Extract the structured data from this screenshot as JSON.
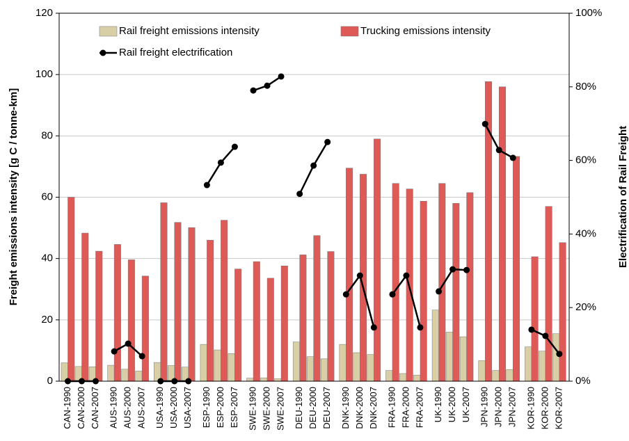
{
  "chart_data": {
    "type": "bar",
    "y_label": "Freight emissions intensity  [g C / tonne-km]",
    "y2_label": "Electrification of Rail Freight",
    "categories": [
      "CAN-1990",
      "CAN-2000",
      "CAN-2007",
      "AUS-1990",
      "AUS-2000",
      "AUS-2007",
      "USA-1990",
      "USA-2000",
      "USA-2007",
      "ESP-1990",
      "ESP-2000",
      "ESP-2007",
      "SWE-1990",
      "SWE-2000",
      "SWE-2007",
      "DEU-1990",
      "DEU-2000",
      "DEU-2007",
      "DNK-1990",
      "DNK-2000",
      "DNK-2007",
      "FRA-1990",
      "FRA-2000",
      "FRA-2007",
      "UK-1990",
      "UK-2000",
      "UK-2007",
      "JPN-1990",
      "JPN-2000",
      "JPN-2007",
      "KOR-1990",
      "KOR-2000",
      "KOR-2007"
    ],
    "series": [
      {
        "name": "Rail freight emissions intensity",
        "type": "bar",
        "color": "#d8cfa6",
        "values": [
          6,
          4.8,
          4.7,
          5.2,
          3.9,
          3.3,
          6.1,
          5.1,
          4.6,
          12,
          10.2,
          9,
          1,
          1.1,
          0.8,
          12.8,
          8,
          7.3,
          12,
          9.3,
          8.7,
          3.5,
          2.5,
          2,
          23.2,
          16,
          14.5,
          6.7,
          3.5,
          3.8,
          11.2,
          9.8,
          15.5
        ]
      },
      {
        "name": "Trucking emissions intensity",
        "type": "bar",
        "color": "#dd5a57",
        "values": [
          60,
          48.3,
          42.4,
          44.6,
          39.6,
          34.3,
          58.2,
          51.8,
          50.1,
          46,
          52.5,
          36.6,
          39,
          33.6,
          37.6,
          41.2,
          47.5,
          42.3,
          69.5,
          67.5,
          79,
          64.5,
          62.7,
          58.7,
          64.5,
          58,
          61.5,
          97.7,
          96,
          73.3,
          40.6,
          57,
          45.2
        ]
      },
      {
        "name": "Rail freight electrification",
        "type": "line",
        "axis": "y2",
        "color": "#000000",
        "values": [
          0,
          0,
          0,
          8.1,
          10.2,
          6.8,
          0,
          0,
          0,
          53.3,
          59.4,
          63.7,
          79,
          80.3,
          82.8,
          50.9,
          58.6,
          65,
          23.6,
          28.7,
          14.6,
          23.6,
          28.7,
          14.6,
          24.4,
          30.4,
          30.2,
          69.9,
          62.8,
          60.7,
          14,
          12.3,
          7.4
        ]
      }
    ],
    "ylim": [
      0,
      120
    ],
    "yticks": [
      0,
      20,
      40,
      60,
      80,
      100,
      120
    ],
    "y2lim": [
      0,
      100
    ],
    "y2ticks": [
      {
        "value": 0,
        "label": "0%"
      },
      {
        "value": 20,
        "label": "20%"
      },
      {
        "value": 40,
        "label": "40%"
      },
      {
        "value": 60,
        "label": "60%"
      },
      {
        "value": 80,
        "label": "80%"
      },
      {
        "value": 100,
        "label": "100%"
      }
    ],
    "group_size": 3,
    "grid": true
  }
}
